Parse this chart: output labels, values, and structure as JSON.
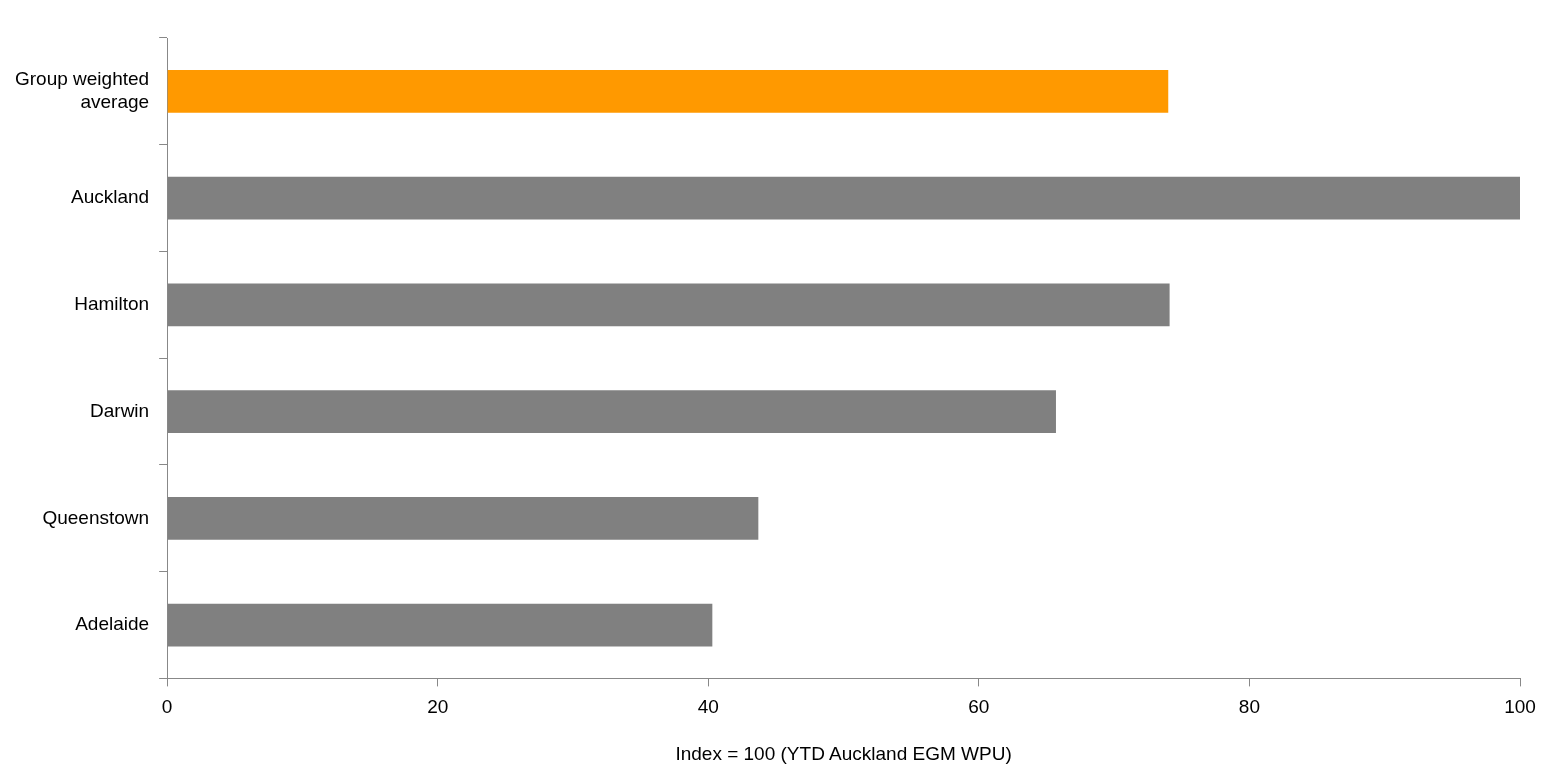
{
  "chart_data": {
    "type": "bar",
    "orientation": "horizontal",
    "xlabel": "Index = 100 (YTD Auckland EGM WPU)",
    "categories": [
      "Group weighted average",
      "Auckland",
      "Hamilton",
      "Darwin",
      "Queenstown",
      "Adelaide"
    ],
    "values": [
      74,
      100,
      74.1,
      65.7,
      43.7,
      40.3
    ],
    "colors": [
      "#ff9900",
      "#808080",
      "#808080",
      "#808080",
      "#808080",
      "#808080"
    ],
    "xlim": [
      0,
      100
    ],
    "xticks": [
      0,
      20,
      40,
      60,
      80,
      100
    ],
    "grid": false,
    "legend": false
  }
}
